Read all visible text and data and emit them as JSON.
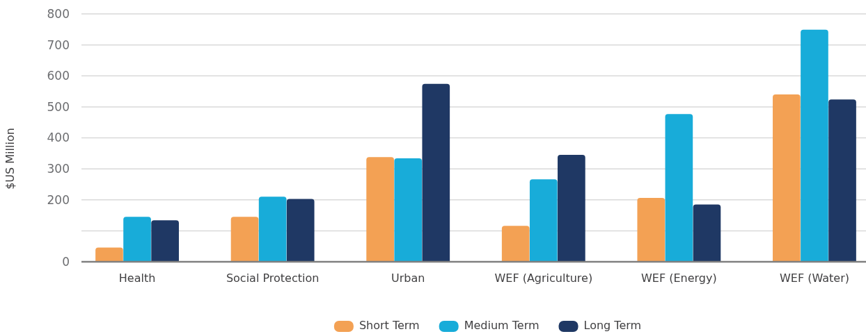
{
  "chart_data": {
    "type": "bar",
    "ylabel": "$US Million",
    "categories": [
      "Health",
      "Social Protection",
      "Urban",
      "WEF (Agriculture)",
      "WEF (Energy)",
      "WEF (Water)"
    ],
    "series": [
      {
        "name": "Short Term",
        "color": "#f3a154",
        "values": [
          46,
          145,
          338,
          116,
          206,
          540
        ]
      },
      {
        "name": "Medium Term",
        "color": "#18acd9",
        "values": [
          145,
          210,
          334,
          266,
          477,
          749
        ]
      },
      {
        "name": "Long Term",
        "color": "#1f3864",
        "values": [
          134,
          203,
          574,
          345,
          185,
          524
        ]
      }
    ],
    "ylim": [
      0,
      800
    ],
    "yticks": [
      0,
      {
        "value": 100,
        "label": null
      },
      200,
      300,
      400,
      500,
      600,
      700,
      800
    ],
    "grid": "y",
    "legend": "bottom"
  }
}
